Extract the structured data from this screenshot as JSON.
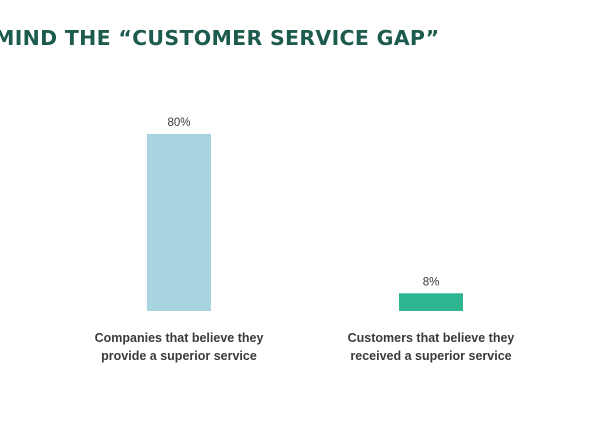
{
  "chart_data": {
    "type": "bar",
    "title": "MIND THE “CUSTOMER SERVICE GAP”",
    "categories": [
      "Companies that believe they\nprovide a superior service",
      "Customers that believe they\nreceived a superior service"
    ],
    "values": [
      80,
      8
    ],
    "value_labels": [
      "80%",
      "8%"
    ],
    "bar_colors": [
      "#a8d4e0",
      "#2fb58f"
    ],
    "title_color": "#1e5b4f",
    "ylim": [
      0,
      100
    ],
    "grid": false
  }
}
